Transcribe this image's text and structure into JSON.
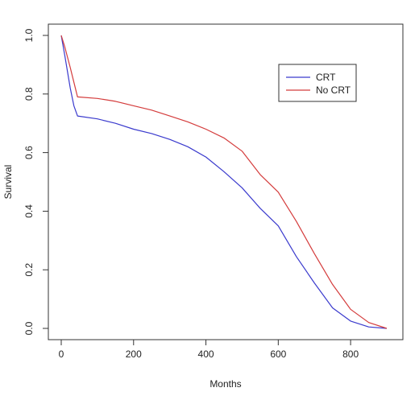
{
  "chart_data": {
    "type": "line",
    "title": "",
    "xlabel": "Months",
    "ylabel": "Survival",
    "xlim": [
      0,
      900
    ],
    "ylim": [
      0,
      1
    ],
    "xticks": [
      0,
      200,
      400,
      600,
      800
    ],
    "xtick_labels": [
      "0",
      "200",
      "400",
      "600",
      "800"
    ],
    "yticks": [
      0.0,
      0.2,
      0.4,
      0.6,
      0.8,
      1.0
    ],
    "ytick_labels": [
      "0.0",
      "0.2",
      "0.4",
      "0.6",
      "0.8",
      "1.0"
    ],
    "grid": false,
    "legend_position": "top-right",
    "series": [
      {
        "name": "CRT",
        "color": "#3a3acd",
        "x": [
          0,
          10,
          25,
          35,
          45,
          100,
          150,
          200,
          250,
          300,
          350,
          400,
          450,
          500,
          550,
          600,
          650,
          700,
          750,
          800,
          850,
          900
        ],
        "y": [
          1.0,
          0.93,
          0.82,
          0.76,
          0.725,
          0.715,
          0.7,
          0.68,
          0.665,
          0.645,
          0.62,
          0.585,
          0.535,
          0.48,
          0.41,
          0.35,
          0.245,
          0.155,
          0.07,
          0.025,
          0.005,
          0.0
        ]
      },
      {
        "name": "No CRT",
        "color": "#d43c3c",
        "x": [
          0,
          10,
          25,
          35,
          45,
          100,
          150,
          200,
          250,
          300,
          350,
          400,
          450,
          500,
          550,
          600,
          650,
          700,
          750,
          800,
          850,
          900
        ],
        "y": [
          1.0,
          0.96,
          0.89,
          0.84,
          0.79,
          0.785,
          0.775,
          0.76,
          0.745,
          0.725,
          0.705,
          0.68,
          0.65,
          0.605,
          0.525,
          0.465,
          0.365,
          0.255,
          0.15,
          0.065,
          0.02,
          0.0
        ]
      }
    ]
  }
}
